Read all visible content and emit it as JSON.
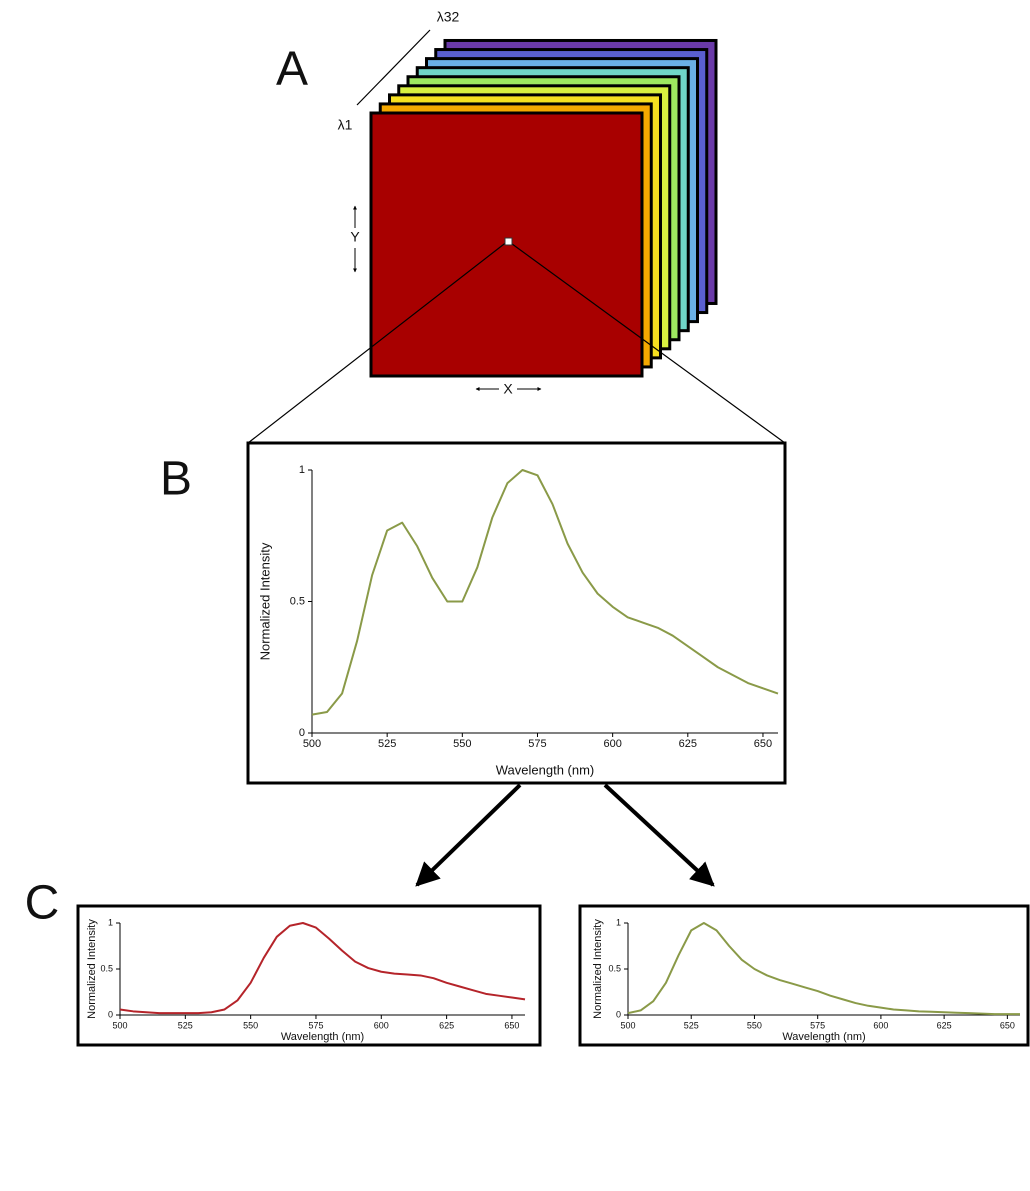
{
  "figure": {
    "panel_labels": [
      "A",
      "B",
      "C"
    ],
    "cube": {
      "lambda_start": "λ1",
      "lambda_end": "λ32",
      "y_axis": "Y",
      "x_axis": "X"
    }
  },
  "chart_data": [
    {
      "type": "line",
      "xlabel": "Wavelength (nm)",
      "ylabel": "Normalized Intensity",
      "x": [
        500,
        505,
        510,
        515,
        520,
        525,
        530,
        535,
        540,
        545,
        550,
        555,
        560,
        565,
        570,
        575,
        580,
        585,
        590,
        595,
        600,
        605,
        610,
        615,
        620,
        625,
        630,
        635,
        640,
        645,
        650,
        655
      ],
      "series": [
        {
          "color": "#8a9a48",
          "values": [
            0.07,
            0.08,
            0.15,
            0.35,
            0.6,
            0.77,
            0.8,
            0.71,
            0.59,
            0.5,
            0.5,
            0.63,
            0.82,
            0.95,
            1.0,
            0.98,
            0.87,
            0.72,
            0.61,
            0.53,
            0.48,
            0.44,
            0.42,
            0.4,
            0.37,
            0.33,
            0.29,
            0.25,
            0.22,
            0.19,
            0.17,
            0.15
          ]
        }
      ],
      "xlim": [
        500,
        655
      ],
      "ylim": [
        0,
        1
      ],
      "xticks": [
        500,
        525,
        550,
        575,
        600,
        625,
        650
      ],
      "yticks": [
        0,
        0.5,
        1
      ]
    },
    {
      "type": "line",
      "xlabel": "Wavelength (nm)",
      "ylabel": "Normalized Intensity",
      "x": [
        500,
        505,
        510,
        515,
        520,
        525,
        530,
        535,
        540,
        545,
        550,
        555,
        560,
        565,
        570,
        575,
        580,
        585,
        590,
        595,
        600,
        605,
        610,
        615,
        620,
        625,
        630,
        635,
        640,
        645,
        650,
        655
      ],
      "series": [
        {
          "color": "#b5242a",
          "values": [
            0.06,
            0.04,
            0.03,
            0.02,
            0.02,
            0.02,
            0.02,
            0.03,
            0.06,
            0.16,
            0.35,
            0.62,
            0.85,
            0.97,
            1.0,
            0.95,
            0.83,
            0.7,
            0.58,
            0.51,
            0.47,
            0.45,
            0.44,
            0.43,
            0.4,
            0.35,
            0.31,
            0.27,
            0.23,
            0.21,
            0.19,
            0.17
          ]
        }
      ],
      "xlim": [
        500,
        655
      ],
      "ylim": [
        0,
        1
      ],
      "xticks": [
        500,
        525,
        550,
        575,
        600,
        625,
        650
      ],
      "yticks": [
        0,
        0.5,
        1
      ]
    },
    {
      "type": "line",
      "xlabel": "Wavelength (nm)",
      "ylabel": "Normalized Intensity",
      "x": [
        500,
        505,
        510,
        515,
        520,
        525,
        530,
        535,
        540,
        545,
        550,
        555,
        560,
        565,
        570,
        575,
        580,
        585,
        590,
        595,
        600,
        605,
        610,
        615,
        620,
        625,
        630,
        635,
        640,
        645,
        650,
        655
      ],
      "series": [
        {
          "color": "#8a9a48",
          "values": [
            0.02,
            0.05,
            0.15,
            0.35,
            0.65,
            0.92,
            1.0,
            0.92,
            0.75,
            0.6,
            0.5,
            0.43,
            0.38,
            0.34,
            0.3,
            0.26,
            0.21,
            0.17,
            0.13,
            0.1,
            0.08,
            0.06,
            0.05,
            0.04,
            0.035,
            0.03,
            0.025,
            0.02,
            0.015,
            0.01,
            0.01,
            0.01
          ]
        }
      ],
      "xlim": [
        500,
        655
      ],
      "ylim": [
        0,
        1
      ],
      "xticks": [
        500,
        525,
        550,
        575,
        600,
        625,
        650
      ],
      "yticks": [
        0,
        0.5,
        1
      ]
    }
  ]
}
